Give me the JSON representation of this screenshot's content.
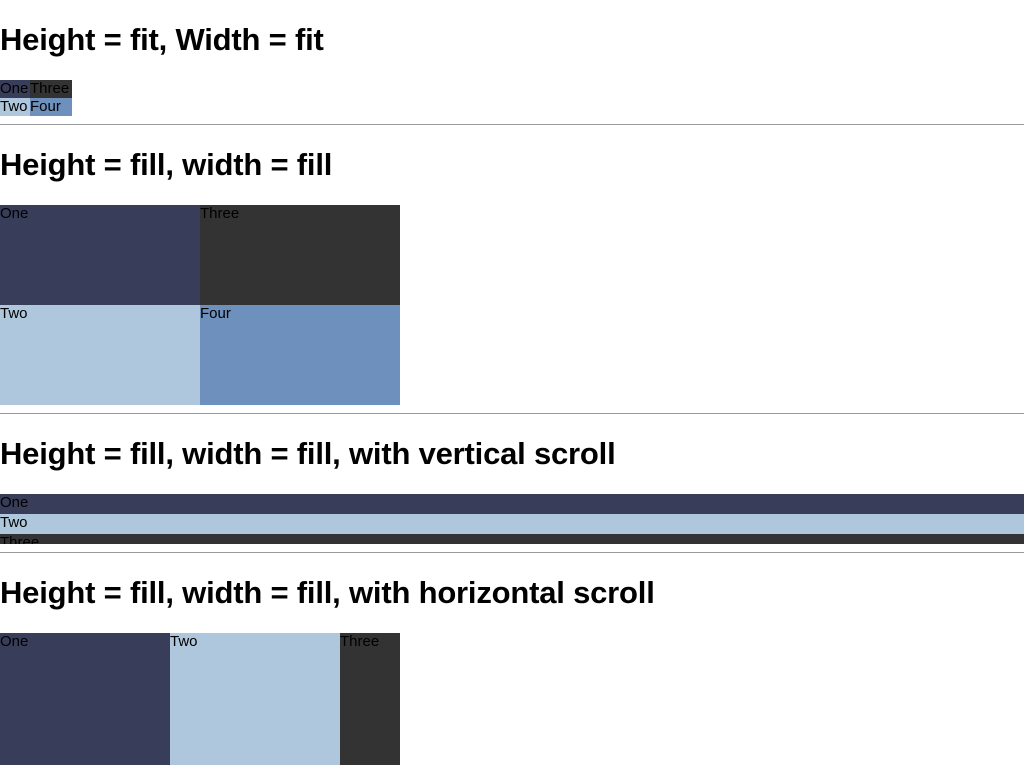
{
  "sections": [
    {
      "title": "Height = fit, Width = fit",
      "cells": [
        "One",
        "Three",
        "Two",
        "Four"
      ]
    },
    {
      "title": "Height = fill, width = fill",
      "cells": [
        "One",
        "Three",
        "Two",
        "Four"
      ]
    },
    {
      "title": "Height = fill, width = fill, with vertical scroll",
      "cells": [
        "One",
        "Two",
        "Three"
      ]
    },
    {
      "title": "Height = fill, width = fill, with horizontal scroll",
      "cells": [
        "One",
        "Two",
        "Three"
      ]
    }
  ],
  "colors": {
    "one": "#383d59",
    "two": "#afc7dc",
    "three": "#333333",
    "four": "#6e90bc",
    "divider": "#9a9a9a"
  }
}
